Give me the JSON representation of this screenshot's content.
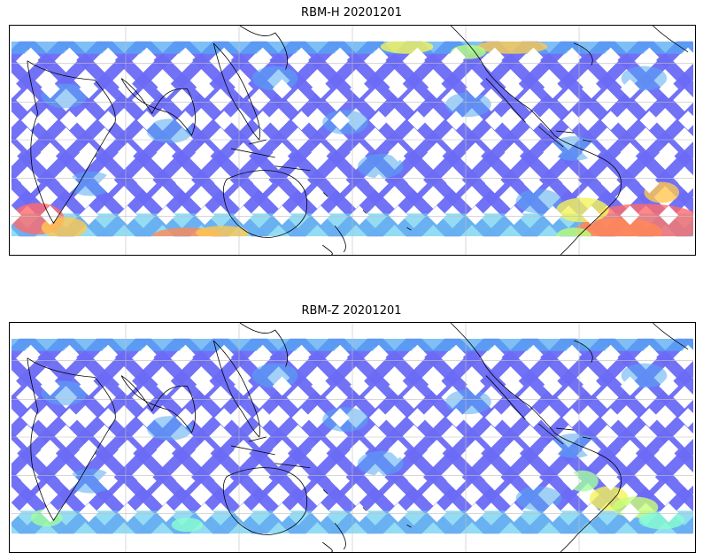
{
  "figure": {
    "panels": [
      {
        "title": "RBM-H 20201201",
        "hotspot_colors": [
          "#ff6a6a",
          "#ff8a55",
          "#ffc850",
          "#f4f45a",
          "#b8ff7a",
          "#88ffb0"
        ]
      },
      {
        "title": "RBM-Z 20201201",
        "hotspot_colors": [
          "#f4f45a",
          "#c8ff78",
          "#a0ffa0",
          "#88ffd0"
        ]
      }
    ],
    "colors": {
      "base_track": "#6a6af5",
      "mid_track": "#55aaf2",
      "light_track": "#66ccf0",
      "coast": "#000000",
      "grid": "#bfbfbf"
    }
  }
}
